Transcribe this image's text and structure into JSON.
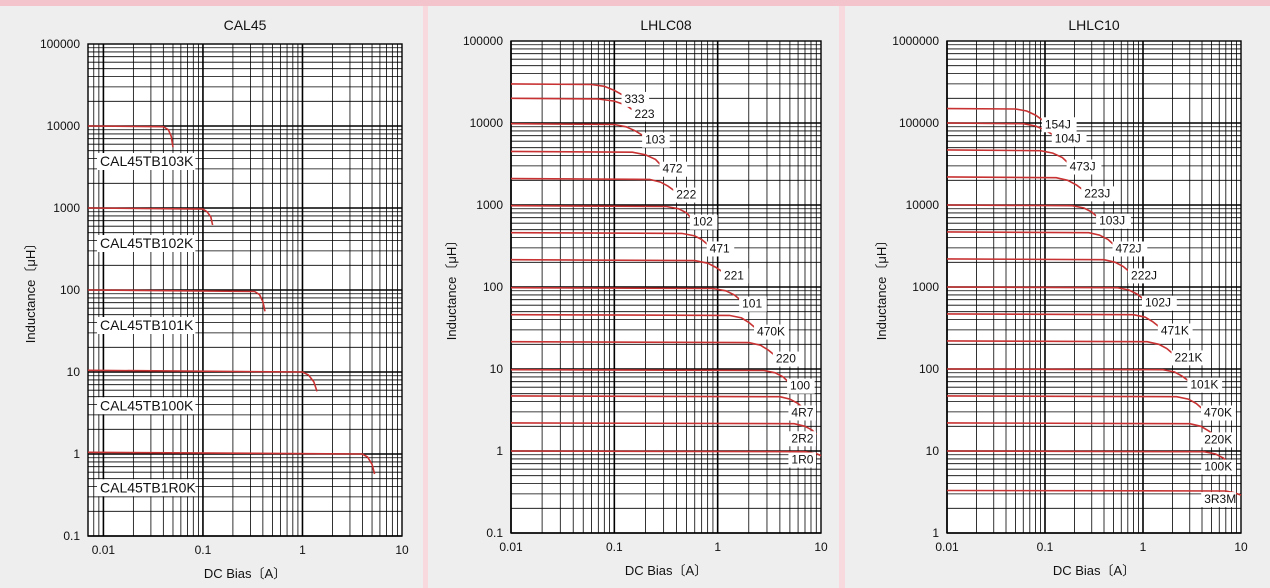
{
  "colors": {
    "panel_bg": "#eeeeee",
    "grid": "#000000",
    "curve": "#c83232",
    "label_bg": "#ffffff"
  },
  "chart_data": [
    {
      "type": "line",
      "title": "CAL45",
      "xlabel": "DC Bias〔A〕",
      "ylabel": "Inductance〔μH〕",
      "x_scale": "log",
      "y_scale": "log",
      "xlim": [
        0.007,
        10
      ],
      "ylim": [
        0.1,
        100000
      ],
      "x_ticks": [
        "0.01",
        "0.1",
        "1",
        "10"
      ],
      "y_ticks": [
        "0.1",
        "1",
        "10",
        "100",
        "1000",
        "10000",
        "100000"
      ],
      "grid": true,
      "series": [
        {
          "name": "CAL45TB103K",
          "x": [
            0.007,
            0.04,
            0.045,
            0.048,
            0.05
          ],
          "y": [
            10000,
            9800,
            9000,
            7500,
            5500
          ]
        },
        {
          "name": "CAL45TB102K",
          "x": [
            0.007,
            0.1,
            0.11,
            0.12,
            0.125
          ],
          "y": [
            1000,
            970,
            900,
            780,
            620
          ]
        },
        {
          "name": "CAL45TB101K",
          "x": [
            0.007,
            0.33,
            0.37,
            0.4,
            0.42
          ],
          "y": [
            100,
            96,
            88,
            72,
            55
          ]
        },
        {
          "name": "CAL45TB100K",
          "x": [
            0.007,
            1.0,
            1.15,
            1.3,
            1.4
          ],
          "y": [
            10.5,
            10,
            9.2,
            7.6,
            5.8
          ]
        },
        {
          "name": "CAL45TB1R0K",
          "x": [
            0.007,
            4.0,
            4.5,
            5.0,
            5.3
          ],
          "y": [
            1.05,
            1.0,
            0.92,
            0.75,
            0.57
          ]
        }
      ]
    },
    {
      "type": "line",
      "title": "LHLC08",
      "xlabel": "DC Bias〔A〕",
      "ylabel": "Inductance〔μH〕",
      "x_scale": "log",
      "y_scale": "log",
      "xlim": [
        0.01,
        10
      ],
      "ylim": [
        0.1,
        100000
      ],
      "x_ticks": [
        "0.01",
        "0.1",
        "1",
        "10"
      ],
      "y_ticks": [
        "0.1",
        "1",
        "10",
        "100",
        "1000",
        "10000",
        "100000"
      ],
      "grid": true,
      "series": [
        {
          "name": "333",
          "x": [
            0.01,
            0.06,
            0.08,
            0.1,
            0.12
          ],
          "y": [
            30000,
            29500,
            28000,
            25000,
            22000
          ]
        },
        {
          "name": "223",
          "x": [
            0.01,
            0.07,
            0.1,
            0.13,
            0.15
          ],
          "y": [
            20000,
            19700,
            18500,
            16500,
            14500
          ]
        },
        {
          "name": "103",
          "x": [
            0.01,
            0.1,
            0.13,
            0.16,
            0.19
          ],
          "y": [
            9800,
            9600,
            9000,
            8000,
            7000
          ]
        },
        {
          "name": "472",
          "x": [
            0.01,
            0.15,
            0.2,
            0.25,
            0.28
          ],
          "y": [
            4500,
            4400,
            4100,
            3600,
            3100
          ]
        },
        {
          "name": "222",
          "x": [
            0.01,
            0.22,
            0.28,
            0.33,
            0.38
          ],
          "y": [
            2100,
            2050,
            1900,
            1700,
            1500
          ]
        },
        {
          "name": "102",
          "x": [
            0.01,
            0.32,
            0.42,
            0.5,
            0.55
          ],
          "y": [
            980,
            960,
            900,
            800,
            700
          ]
        },
        {
          "name": "471",
          "x": [
            0.01,
            0.45,
            0.6,
            0.7,
            0.8
          ],
          "y": [
            460,
            450,
            420,
            380,
            330
          ]
        },
        {
          "name": "221",
          "x": [
            0.01,
            0.6,
            0.8,
            0.95,
            1.1
          ],
          "y": [
            215,
            210,
            195,
            175,
            155
          ]
        },
        {
          "name": "101",
          "x": [
            0.01,
            0.9,
            1.2,
            1.45,
            1.65
          ],
          "y": [
            98,
            96,
            90,
            80,
            70
          ]
        },
        {
          "name": "470K",
          "x": [
            0.01,
            1.3,
            1.7,
            2.0,
            2.3
          ],
          "y": [
            46,
            45,
            42,
            37,
            32
          ]
        },
        {
          "name": "220",
          "x": [
            0.01,
            2.0,
            2.6,
            3.1,
            3.5
          ],
          "y": [
            21.5,
            21,
            19.5,
            17,
            15
          ]
        },
        {
          "name": "100",
          "x": [
            0.01,
            2.8,
            3.6,
            4.3,
            4.8
          ],
          "y": [
            9.8,
            9.6,
            9.0,
            8.0,
            7.0
          ]
        },
        {
          "name": "4R7",
          "x": [
            0.01,
            4.0,
            5.0,
            6.0,
            6.8
          ],
          "y": [
            4.7,
            4.6,
            4.3,
            3.8,
            3.3
          ]
        },
        {
          "name": "2R2",
          "x": [
            0.01,
            5.5,
            7.0,
            8.2,
            9.0
          ],
          "y": [
            2.2,
            2.15,
            2.0,
            1.8,
            1.6
          ]
        },
        {
          "name": "1R0",
          "x": [
            0.01,
            7.0,
            9.0,
            10.0
          ],
          "y": [
            1.0,
            0.98,
            0.93,
            0.88
          ]
        }
      ]
    },
    {
      "type": "line",
      "title": "LHLC10",
      "xlabel": "DC Bias〔A〕",
      "ylabel": "Inductance〔μH〕",
      "x_scale": "log",
      "y_scale": "log",
      "xlim": [
        0.01,
        10
      ],
      "ylim": [
        1,
        1000000
      ],
      "x_ticks": [
        "0.01",
        "0.1",
        "1",
        "10"
      ],
      "y_ticks": [
        "1",
        "10",
        "100",
        "1000",
        "10000",
        "100000",
        "1000000"
      ],
      "grid": true,
      "series": [
        {
          "name": "154J",
          "x": [
            0.01,
            0.05,
            0.065,
            0.08,
            0.095
          ],
          "y": [
            150000,
            148000,
            140000,
            125000,
            108000
          ]
        },
        {
          "name": "104J",
          "x": [
            0.01,
            0.06,
            0.08,
            0.1,
            0.12
          ],
          "y": [
            100000,
            98000,
            92000,
            82000,
            72000
          ]
        },
        {
          "name": "473J",
          "x": [
            0.01,
            0.09,
            0.12,
            0.15,
            0.17
          ],
          "y": [
            47000,
            46000,
            43000,
            38000,
            33000
          ]
        },
        {
          "name": "223J",
          "x": [
            0.01,
            0.13,
            0.17,
            0.21,
            0.24
          ],
          "y": [
            22000,
            21500,
            20000,
            17500,
            15500
          ]
        },
        {
          "name": "103J",
          "x": [
            0.01,
            0.19,
            0.25,
            0.3,
            0.34
          ],
          "y": [
            10000,
            9800,
            9200,
            8200,
            7200
          ]
        },
        {
          "name": "472J",
          "x": [
            0.01,
            0.28,
            0.36,
            0.44,
            0.5
          ],
          "y": [
            4700,
            4600,
            4300,
            3800,
            3300
          ]
        },
        {
          "name": "222J",
          "x": [
            0.01,
            0.4,
            0.52,
            0.63,
            0.72
          ],
          "y": [
            2200,
            2150,
            2000,
            1780,
            1550
          ]
        },
        {
          "name": "102J",
          "x": [
            0.01,
            0.55,
            0.72,
            0.87,
            1.0
          ],
          "y": [
            1000,
            980,
            920,
            820,
            720
          ]
        },
        {
          "name": "471K",
          "x": [
            0.01,
            0.8,
            1.05,
            1.25,
            1.45
          ],
          "y": [
            470,
            460,
            430,
            380,
            330
          ]
        },
        {
          "name": "221K",
          "x": [
            0.01,
            1.1,
            1.45,
            1.75,
            2.0
          ],
          "y": [
            220,
            215,
            200,
            178,
            155
          ]
        },
        {
          "name": "101K",
          "x": [
            0.01,
            1.6,
            2.1,
            2.5,
            2.9
          ],
          "y": [
            100,
            98,
            92,
            82,
            72
          ]
        },
        {
          "name": "470K",
          "x": [
            0.01,
            2.2,
            2.9,
            3.5,
            4.0
          ],
          "y": [
            47,
            46,
            43,
            38,
            33
          ]
        },
        {
          "name": "220K",
          "x": [
            0.01,
            3.0,
            3.9,
            4.7,
            5.4
          ],
          "y": [
            22,
            21.5,
            20,
            17.5,
            15.5
          ]
        },
        {
          "name": "100K",
          "x": [
            0.01,
            4.2,
            5.5,
            6.6,
            7.5
          ],
          "y": [
            10,
            9.8,
            9.2,
            8.2,
            7.2
          ]
        },
        {
          "name": "3R3M",
          "x": [
            0.01,
            7.0,
            8.5,
            10.0
          ],
          "y": [
            3.3,
            3.25,
            3.1,
            2.9
          ]
        }
      ]
    }
  ]
}
